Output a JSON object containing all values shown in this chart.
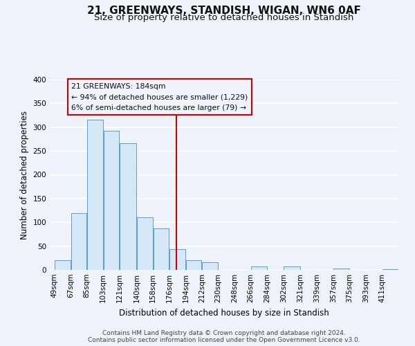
{
  "title": "21, GREENWAYS, STANDISH, WIGAN, WN6 0AF",
  "subtitle": "Size of property relative to detached houses in Standish",
  "xlabel": "Distribution of detached houses by size in Standish",
  "ylabel": "Number of detached properties",
  "footnote1": "Contains HM Land Registry data © Crown copyright and database right 2024.",
  "footnote2": "Contains public sector information licensed under the Open Government Licence v3.0.",
  "bar_color_face": "#d6e8f7",
  "bar_color_edge": "#5b9bd5",
  "bins": [
    49,
    67,
    85,
    103,
    121,
    140,
    158,
    176,
    194,
    212,
    230,
    248,
    266,
    284,
    302,
    321,
    339,
    357,
    375,
    393,
    411
  ],
  "values": [
    20,
    119,
    315,
    293,
    266,
    110,
    88,
    44,
    20,
    16,
    0,
    0,
    8,
    0,
    7,
    0,
    0,
    3,
    0,
    0,
    2
  ],
  "ylim": [
    0,
    400
  ],
  "yticks": [
    0,
    50,
    100,
    150,
    200,
    250,
    300,
    350,
    400
  ],
  "property_size": 184,
  "vline_color": "#cc0000",
  "box_label_line1": "21 GREENWAYS: 184sqm",
  "box_label_line2": "← 94% of detached houses are smaller (1,229)",
  "box_label_line3": "6% of semi-detached houses are larger (79) →",
  "background_color": "#eef2f9",
  "grid_color": "#ffffff",
  "title_fontsize": 11,
  "subtitle_fontsize": 9.5,
  "axis_label_fontsize": 8.5,
  "tick_fontsize": 7.5,
  "footnote_fontsize": 6.5
}
